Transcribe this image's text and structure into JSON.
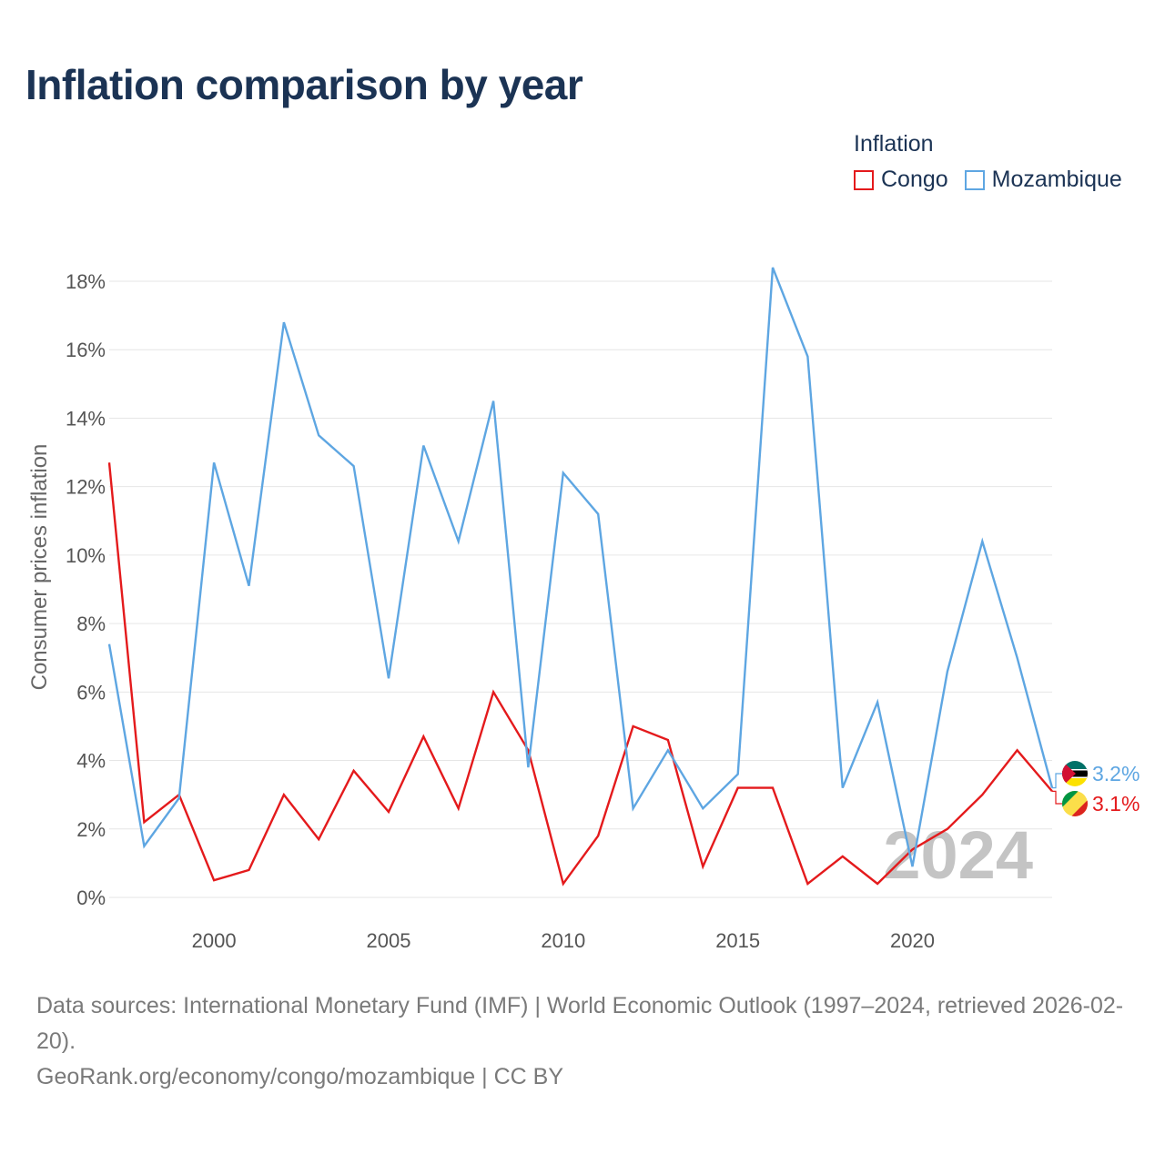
{
  "title": "Inflation comparison by year",
  "legend": {
    "title": "Inflation",
    "items": [
      {
        "label": "Congo",
        "color": "#e41a1c"
      },
      {
        "label": "Mozambique",
        "color": "#5ea6e2"
      }
    ]
  },
  "footer": {
    "source": "Data sources: International Monetary Fund (IMF) | World Economic Outlook (1997–2024, retrieved 2026-02-20).",
    "credit": "GeoRank.org/economy/congo/mozambique | CC BY"
  },
  "chart_data": {
    "type": "line",
    "title": "Inflation comparison by year",
    "xlabel": "",
    "ylabel": "Consumer prices inflation",
    "xlim": [
      1997,
      2024
    ],
    "ylim": [
      0,
      18
    ],
    "x_ticks": [
      2000,
      2005,
      2010,
      2015,
      2020
    ],
    "y_ticks": [
      0,
      2,
      4,
      6,
      8,
      10,
      12,
      14,
      16,
      18
    ],
    "y_tick_labels": [
      "0%",
      "2%",
      "4%",
      "6%",
      "8%",
      "10%",
      "12%",
      "14%",
      "16%",
      "18%"
    ],
    "year_watermark": "2024",
    "x": [
      1997,
      1998,
      1999,
      2000,
      2001,
      2002,
      2003,
      2004,
      2005,
      2006,
      2007,
      2008,
      2009,
      2010,
      2011,
      2012,
      2013,
      2014,
      2015,
      2016,
      2017,
      2018,
      2019,
      2020,
      2021,
      2022,
      2023,
      2024
    ],
    "series": [
      {
        "name": "Congo",
        "color": "#e41a1c",
        "end_label": "3.1%",
        "values": [
          12.7,
          2.2,
          3.0,
          0.5,
          0.8,
          3.0,
          1.7,
          3.7,
          2.5,
          4.7,
          2.6,
          6.0,
          4.3,
          0.4,
          1.8,
          5.0,
          4.6,
          0.9,
          3.2,
          3.2,
          0.4,
          1.2,
          0.4,
          1.4,
          2.0,
          3.0,
          4.3,
          3.1
        ]
      },
      {
        "name": "Mozambique",
        "color": "#5ea6e2",
        "end_label": "3.2%",
        "values": [
          7.4,
          1.5,
          2.9,
          12.7,
          9.1,
          16.8,
          13.5,
          12.6,
          6.4,
          13.2,
          10.4,
          14.5,
          3.8,
          12.4,
          11.2,
          2.6,
          4.3,
          2.6,
          3.6,
          18.4,
          15.8,
          3.2,
          5.7,
          0.9,
          6.6,
          10.4,
          7.0,
          3.2
        ]
      }
    ]
  }
}
